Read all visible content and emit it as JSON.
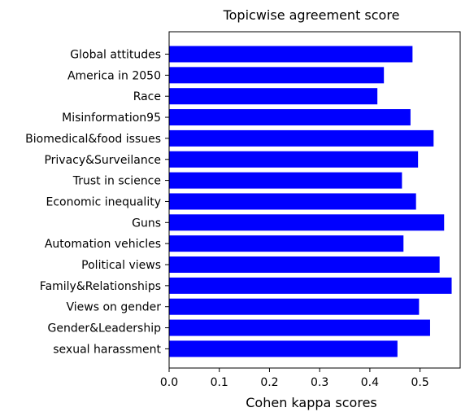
{
  "chart_data": {
    "type": "bar",
    "orientation": "horizontal",
    "title": "Topicwise agreement score",
    "xlabel": "Cohen kappa scores",
    "ylabel": "",
    "xlim": [
      0.0,
      0.58
    ],
    "xticks": [
      "0.0",
      "0.1",
      "0.2",
      "0.3",
      "0.4",
      "0.5"
    ],
    "bar_color": "#0000FF",
    "grid": false,
    "categories": [
      "Global attitudes",
      "America in 2050",
      "Race",
      "Misinformation95",
      "Biomedical&food issues",
      "Privacy&Surveilance",
      "Trust in science",
      "Economic inequality",
      "Guns",
      "Automation vehicles",
      "Political views",
      "Family&Relationships",
      "Views on gender",
      "Gender&Leadership",
      "sexual harassment"
    ],
    "values": [
      0.485,
      0.428,
      0.415,
      0.481,
      0.527,
      0.496,
      0.464,
      0.492,
      0.548,
      0.467,
      0.539,
      0.563,
      0.498,
      0.52,
      0.455
    ]
  }
}
